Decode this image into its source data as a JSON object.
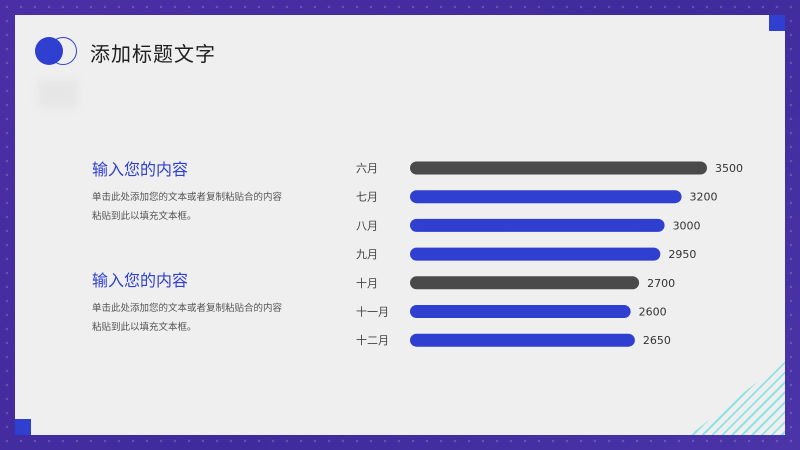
{
  "slide": {
    "title": "添加标题文字",
    "blocks": [
      {
        "heading": "输入您的内容",
        "body": "单击此处添加您的文本或者复制粘贴合的内容粘贴到此以填充文本框。"
      },
      {
        "heading": "输入您的内容",
        "body": "单击此处添加您的文本或者复制粘贴合的内容粘贴到此以填充文本框。"
      }
    ]
  },
  "colors": {
    "accent": "#2f3fd0",
    "dark_bar": "#4a4a4a",
    "frame": "#4a2fa3"
  },
  "chart_data": {
    "type": "bar",
    "orientation": "horizontal",
    "categories": [
      "六月",
      "七月",
      "八月",
      "九月",
      "十月",
      "十一月",
      "十二月"
    ],
    "values": [
      3500,
      3200,
      3000,
      2950,
      2700,
      2600,
      2650
    ],
    "bar_colors": [
      "#4a4a4a",
      "#2f3fd0",
      "#2f3fd0",
      "#2f3fd0",
      "#4a4a4a",
      "#2f3fd0",
      "#2f3fd0"
    ],
    "title": "",
    "xlabel": "",
    "ylabel": "",
    "xlim": [
      0,
      3500
    ],
    "grid": false,
    "data_labels": true
  }
}
